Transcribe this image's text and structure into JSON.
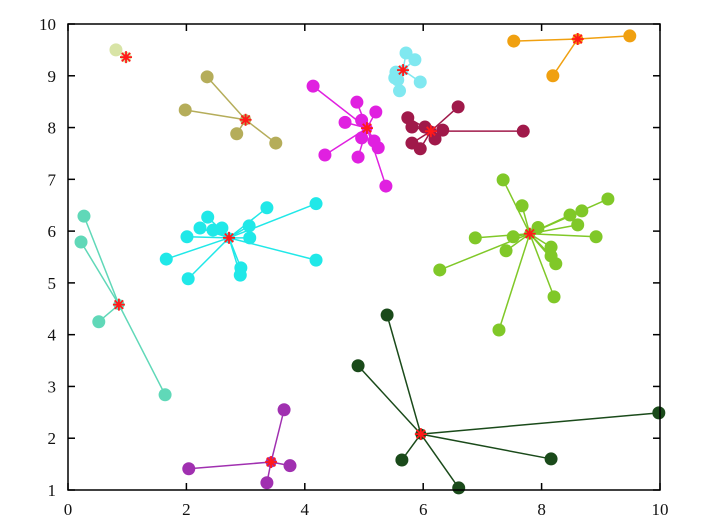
{
  "chart_data": {
    "type": "scatter",
    "title": "",
    "xlabel": "",
    "ylabel": "",
    "xlim": [
      0,
      10
    ],
    "ylim": [
      1,
      10
    ],
    "xticks": [
      "0",
      "2",
      "4",
      "6",
      "8",
      "10"
    ],
    "yticks": [
      "1",
      "2",
      "3",
      "4",
      "5",
      "6",
      "7",
      "8",
      "9",
      "10"
    ],
    "grid": false,
    "legend": "none",
    "centroid_marker_color": "#ff1a1a",
    "clusters": [
      {
        "color": "#d8e4a6",
        "centroid": [
          0.98,
          9.36
        ],
        "points": [
          [
            0.81,
            9.5
          ]
        ],
        "lines": false
      },
      {
        "color": "#b5ad5a",
        "centroid": [
          3.0,
          8.15
        ],
        "points": [
          [
            2.35,
            8.98
          ],
          [
            1.98,
            8.34
          ],
          [
            2.85,
            7.88
          ],
          [
            3.51,
            7.7
          ]
        ],
        "lines": true
      },
      {
        "color": "#e020e0",
        "centroid": [
          5.05,
          7.99
        ],
        "points": [
          [
            4.14,
            8.8
          ],
          [
            4.88,
            8.49
          ],
          [
            5.2,
            8.3
          ],
          [
            4.68,
            8.1
          ],
          [
            4.96,
            8.14
          ],
          [
            4.96,
            7.8
          ],
          [
            5.17,
            7.74
          ],
          [
            5.24,
            7.61
          ],
          [
            4.9,
            7.43
          ],
          [
            4.34,
            7.47
          ],
          [
            5.37,
            6.87
          ]
        ],
        "lines": true
      },
      {
        "color": "#80e8f0",
        "centroid": [
          5.66,
          9.11
        ],
        "points": [
          [
            5.71,
            9.44
          ],
          [
            5.86,
            9.31
          ],
          [
            5.54,
            9.07
          ],
          [
            5.57,
            8.92
          ],
          [
            5.95,
            8.88
          ],
          [
            5.6,
            8.71
          ],
          [
            5.52,
            8.96
          ]
        ],
        "lines": true
      },
      {
        "color": "#a0194a",
        "centroid": [
          6.13,
          7.93
        ],
        "points": [
          [
            6.59,
            8.4
          ],
          [
            7.69,
            7.93
          ],
          [
            5.74,
            8.19
          ],
          [
            5.81,
            8.01
          ],
          [
            6.03,
            8.01
          ],
          [
            6.33,
            7.95
          ],
          [
            6.2,
            7.78
          ],
          [
            5.81,
            7.7
          ],
          [
            5.95,
            7.59
          ]
        ],
        "lines": true
      },
      {
        "color": "#f0a010",
        "centroid": [
          8.61,
          9.71
        ],
        "points": [
          [
            7.53,
            9.67
          ],
          [
            9.49,
            9.77
          ],
          [
            8.19,
            9.0
          ]
        ],
        "lines": true
      },
      {
        "color": "#80c828",
        "centroid": [
          7.8,
          5.95
        ],
        "points": [
          [
            7.35,
            6.99
          ],
          [
            7.67,
            6.49
          ],
          [
            7.94,
            6.07
          ],
          [
            8.48,
            6.31
          ],
          [
            8.68,
            6.39
          ],
          [
            9.12,
            6.62
          ],
          [
            8.61,
            6.12
          ],
          [
            8.92,
            5.89
          ],
          [
            6.88,
            5.87
          ],
          [
            7.52,
            5.89
          ],
          [
            7.4,
            5.62
          ],
          [
            6.28,
            5.25
          ],
          [
            8.16,
            5.69
          ],
          [
            8.16,
            5.52
          ],
          [
            8.24,
            5.37
          ],
          [
            8.21,
            4.73
          ],
          [
            7.28,
            4.09
          ]
        ],
        "lines": true
      },
      {
        "color": "#20e8e8",
        "centroid": [
          2.72,
          5.87
        ],
        "points": [
          [
            4.19,
            6.53
          ],
          [
            4.19,
            5.44
          ],
          [
            3.36,
            6.45
          ],
          [
            3.06,
            6.1
          ],
          [
            3.07,
            5.87
          ],
          [
            2.36,
            6.27
          ],
          [
            2.23,
            6.06
          ],
          [
            2.45,
            6.02
          ],
          [
            2.6,
            6.06
          ],
          [
            2.01,
            5.89
          ],
          [
            1.66,
            5.46
          ],
          [
            2.03,
            5.08
          ],
          [
            2.92,
            5.29
          ],
          [
            2.91,
            5.15
          ]
        ],
        "lines": true
      },
      {
        "color": "#60d8b8",
        "centroid": [
          0.86,
          4.58
        ],
        "points": [
          [
            0.27,
            6.29
          ],
          [
            0.22,
            5.79
          ],
          [
            0.52,
            4.25
          ],
          [
            1.64,
            2.84
          ]
        ],
        "lines": true
      },
      {
        "color": "#a030b0",
        "centroid": [
          3.43,
          1.54
        ],
        "points": [
          [
            3.65,
            2.55
          ],
          [
            3.75,
            1.47
          ],
          [
            3.36,
            1.14
          ],
          [
            2.04,
            1.41
          ]
        ],
        "lines": true
      },
      {
        "color": "#1a4a1a",
        "centroid": [
          5.96,
          2.08
        ],
        "points": [
          [
            5.39,
            4.38
          ],
          [
            4.9,
            3.4
          ],
          [
            9.98,
            2.49
          ],
          [
            8.16,
            1.6
          ],
          [
            5.64,
            1.58
          ],
          [
            6.6,
            1.04
          ]
        ],
        "lines": true
      }
    ]
  }
}
